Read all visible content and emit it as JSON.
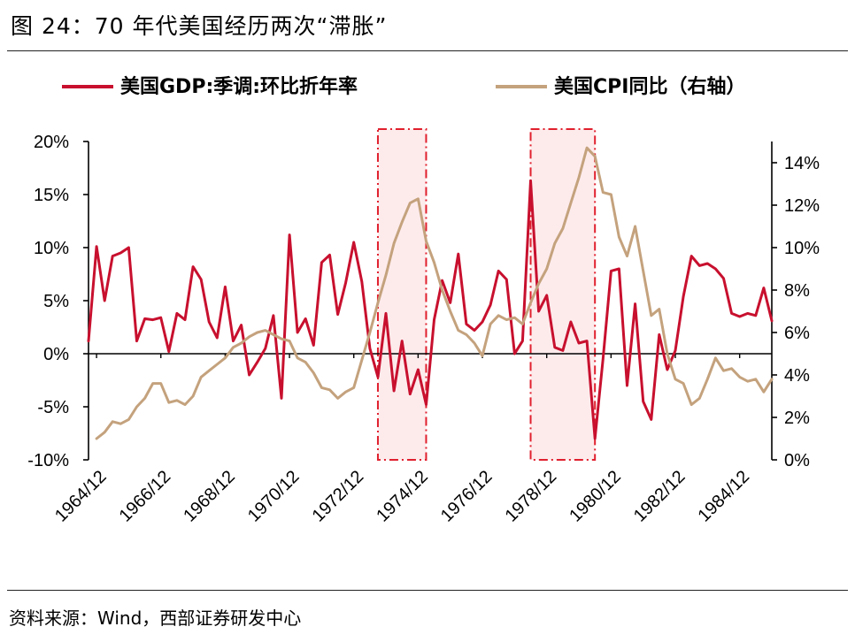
{
  "title": "图 24：70 年代美国经历两次“滞胀”",
  "source": "资料来源：Wind，西部证券研发中心",
  "chart_data": {
    "type": "line",
    "legend_position": "top",
    "grid": false,
    "x_tick_labels": [
      "1964/12",
      "1966/12",
      "1968/12",
      "1970/12",
      "1972/12",
      "1974/12",
      "1976/12",
      "1978/12",
      "1980/12",
      "1982/12",
      "1984/12"
    ],
    "y_left": {
      "ticks": [
        "20%",
        "15%",
        "10%",
        "5%",
        "0%",
        "-5%",
        "-10%"
      ],
      "range": [
        -10,
        20
      ]
    },
    "y_right": {
      "ticks": [
        "14%",
        "12%",
        "10%",
        "8%",
        "6%",
        "4%",
        "2%",
        "0%"
      ],
      "range": [
        0,
        15
      ]
    },
    "shaded_periods": [
      {
        "start": "1973/09",
        "end": "1975/03"
      },
      {
        "start": "1978/06",
        "end": "1980/06"
      }
    ],
    "series": [
      {
        "name": "美国GDP:季调:环比折年率",
        "axis": "left",
        "color": "#C8102E",
        "points": [
          [
            "1964/09",
            1.2
          ],
          [
            "1964/12",
            10.1
          ],
          [
            "1965/03",
            5.0
          ],
          [
            "1965/06",
            9.2
          ],
          [
            "1965/09",
            9.5
          ],
          [
            "1965/12",
            10.0
          ],
          [
            "1966/03",
            1.2
          ],
          [
            "1966/06",
            3.3
          ],
          [
            "1966/09",
            3.2
          ],
          [
            "1966/12",
            3.4
          ],
          [
            "1967/03",
            0.2
          ],
          [
            "1967/06",
            3.8
          ],
          [
            "1967/09",
            3.2
          ],
          [
            "1967/12",
            8.2
          ],
          [
            "1968/03",
            7.0
          ],
          [
            "1968/06",
            3.0
          ],
          [
            "1968/09",
            1.5
          ],
          [
            "1968/12",
            6.3
          ],
          [
            "1969/03",
            1.2
          ],
          [
            "1969/06",
            2.7
          ],
          [
            "1969/09",
            -2.0
          ],
          [
            "1969/12",
            -0.8
          ],
          [
            "1970/03",
            0.5
          ],
          [
            "1970/06",
            3.6
          ],
          [
            "1970/09",
            -4.2
          ],
          [
            "1970/12",
            11.2
          ],
          [
            "1971/03",
            2.0
          ],
          [
            "1971/06",
            3.3
          ],
          [
            "1971/09",
            0.8
          ],
          [
            "1971/12",
            8.6
          ],
          [
            "1972/03",
            9.3
          ],
          [
            "1972/06",
            3.7
          ],
          [
            "1972/09",
            6.7
          ],
          [
            "1972/12",
            10.5
          ],
          [
            "1973/03",
            6.8
          ],
          [
            "1973/06",
            0.5
          ],
          [
            "1973/09",
            -2.2
          ],
          [
            "1973/12",
            3.8
          ],
          [
            "1974/03",
            -3.5
          ],
          [
            "1974/06",
            1.2
          ],
          [
            "1974/09",
            -3.8
          ],
          [
            "1974/12",
            -1.5
          ],
          [
            "1975/03",
            -4.8
          ],
          [
            "1975/06",
            3.2
          ],
          [
            "1975/09",
            6.9
          ],
          [
            "1975/12",
            4.8
          ],
          [
            "1976/03",
            9.4
          ],
          [
            "1976/06",
            2.8
          ],
          [
            "1976/09",
            2.2
          ],
          [
            "1976/12",
            3.0
          ],
          [
            "1977/03",
            4.6
          ],
          [
            "1977/06",
            7.8
          ],
          [
            "1977/09",
            7.0
          ],
          [
            "1977/12",
            0.0
          ],
          [
            "1978/03",
            1.2
          ],
          [
            "1978/06",
            16.3
          ],
          [
            "1978/09",
            4.0
          ],
          [
            "1978/12",
            5.5
          ],
          [
            "1979/03",
            0.6
          ],
          [
            "1979/06",
            0.3
          ],
          [
            "1979/09",
            3.0
          ],
          [
            "1979/12",
            1.0
          ],
          [
            "1980/03",
            1.2
          ],
          [
            "1980/06",
            -8.0
          ],
          [
            "1980/09",
            -0.5
          ],
          [
            "1980/12",
            7.8
          ],
          [
            "1981/03",
            8.0
          ],
          [
            "1981/06",
            -3.0
          ],
          [
            "1981/09",
            4.7
          ],
          [
            "1981/12",
            -4.5
          ],
          [
            "1982/03",
            -6.2
          ],
          [
            "1982/06",
            1.8
          ],
          [
            "1982/09",
            -1.5
          ],
          [
            "1982/12",
            0.3
          ],
          [
            "1983/03",
            5.4
          ],
          [
            "1983/06",
            9.2
          ],
          [
            "1983/09",
            8.3
          ],
          [
            "1983/12",
            8.5
          ],
          [
            "1984/03",
            8.0
          ],
          [
            "1984/06",
            7.1
          ],
          [
            "1984/09",
            3.8
          ],
          [
            "1984/12",
            3.5
          ],
          [
            "1985/03",
            3.8
          ],
          [
            "1985/06",
            3.6
          ],
          [
            "1985/09",
            6.2
          ],
          [
            "1985/12",
            3.1
          ]
        ]
      },
      {
        "name": "美国CPI同比（右轴）",
        "axis": "right",
        "color": "#C4A27D",
        "points": [
          [
            "1964/12",
            1.0
          ],
          [
            "1965/03",
            1.3
          ],
          [
            "1965/06",
            1.8
          ],
          [
            "1965/09",
            1.7
          ],
          [
            "1965/12",
            1.9
          ],
          [
            "1966/03",
            2.5
          ],
          [
            "1966/06",
            2.9
          ],
          [
            "1966/09",
            3.6
          ],
          [
            "1966/12",
            3.6
          ],
          [
            "1967/03",
            2.7
          ],
          [
            "1967/06",
            2.8
          ],
          [
            "1967/09",
            2.6
          ],
          [
            "1967/12",
            3.0
          ],
          [
            "1968/03",
            3.9
          ],
          [
            "1968/06",
            4.2
          ],
          [
            "1968/09",
            4.5
          ],
          [
            "1968/12",
            4.8
          ],
          [
            "1969/03",
            5.3
          ],
          [
            "1969/06",
            5.5
          ],
          [
            "1969/09",
            5.8
          ],
          [
            "1969/12",
            6.0
          ],
          [
            "1970/03",
            6.1
          ],
          [
            "1970/06",
            5.9
          ],
          [
            "1970/09",
            5.7
          ],
          [
            "1970/12",
            5.6
          ],
          [
            "1971/03",
            4.8
          ],
          [
            "1971/06",
            4.6
          ],
          [
            "1971/09",
            4.1
          ],
          [
            "1971/12",
            3.4
          ],
          [
            "1972/03",
            3.3
          ],
          [
            "1972/06",
            2.9
          ],
          [
            "1972/09",
            3.2
          ],
          [
            "1972/12",
            3.4
          ],
          [
            "1973/03",
            4.7
          ],
          [
            "1973/06",
            6.0
          ],
          [
            "1973/09",
            7.4
          ],
          [
            "1973/12",
            8.7
          ],
          [
            "1974/03",
            10.2
          ],
          [
            "1974/06",
            11.2
          ],
          [
            "1974/09",
            12.1
          ],
          [
            "1974/12",
            12.3
          ],
          [
            "1975/03",
            10.3
          ],
          [
            "1975/06",
            9.3
          ],
          [
            "1975/09",
            8.0
          ],
          [
            "1975/12",
            7.0
          ],
          [
            "1976/03",
            6.1
          ],
          [
            "1976/06",
            5.9
          ],
          [
            "1976/09",
            5.5
          ],
          [
            "1976/12",
            4.9
          ],
          [
            "1977/03",
            6.4
          ],
          [
            "1977/06",
            6.8
          ],
          [
            "1977/09",
            6.6
          ],
          [
            "1977/12",
            6.7
          ],
          [
            "1978/03",
            6.4
          ],
          [
            "1978/06",
            7.4
          ],
          [
            "1978/09",
            8.3
          ],
          [
            "1978/12",
            9.0
          ],
          [
            "1979/03",
            10.2
          ],
          [
            "1979/06",
            10.9
          ],
          [
            "1979/09",
            12.1
          ],
          [
            "1979/12",
            13.3
          ],
          [
            "1980/03",
            14.7
          ],
          [
            "1980/06",
            14.3
          ],
          [
            "1980/09",
            12.6
          ],
          [
            "1980/12",
            12.5
          ],
          [
            "1981/03",
            10.5
          ],
          [
            "1981/06",
            9.6
          ],
          [
            "1981/09",
            11.0
          ],
          [
            "1981/12",
            8.9
          ],
          [
            "1982/03",
            6.8
          ],
          [
            "1982/06",
            7.1
          ],
          [
            "1982/09",
            5.0
          ],
          [
            "1982/12",
            3.8
          ],
          [
            "1983/03",
            3.6
          ],
          [
            "1983/06",
            2.6
          ],
          [
            "1983/09",
            2.9
          ],
          [
            "1983/12",
            3.8
          ],
          [
            "1984/03",
            4.8
          ],
          [
            "1984/06",
            4.2
          ],
          [
            "1984/09",
            4.3
          ],
          [
            "1984/12",
            3.9
          ],
          [
            "1985/03",
            3.7
          ],
          [
            "1985/06",
            3.8
          ],
          [
            "1985/09",
            3.2
          ],
          [
            "1985/12",
            3.8
          ]
        ]
      }
    ]
  }
}
